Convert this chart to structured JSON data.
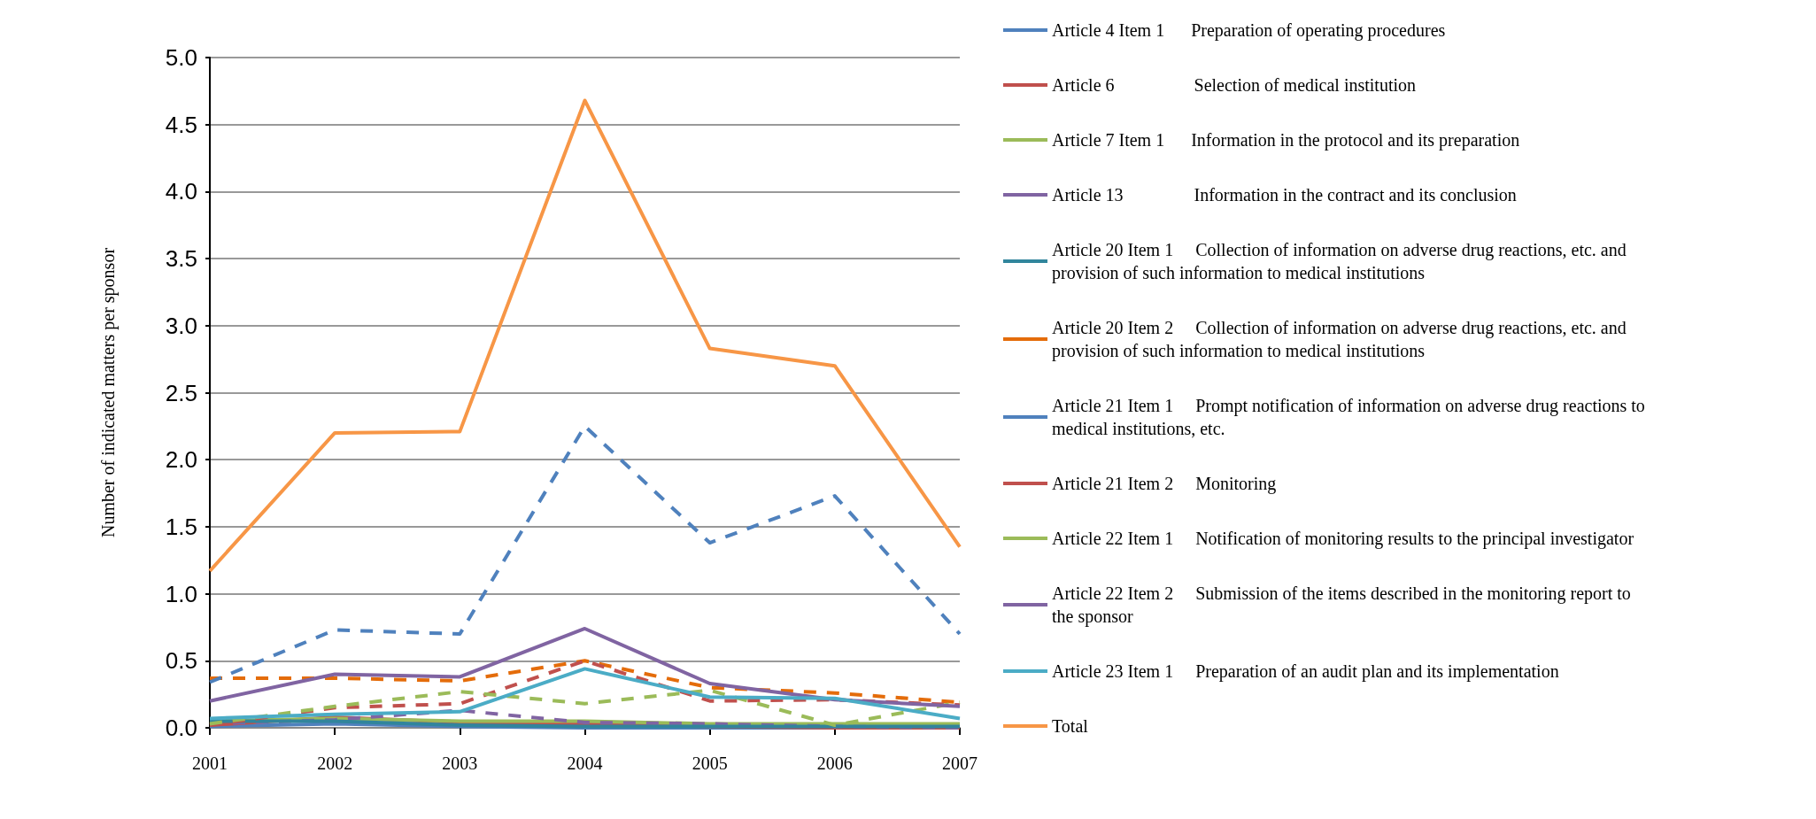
{
  "chart_data": {
    "type": "line",
    "ylabel": "Number of indicated matters per sponsor",
    "categories": [
      "2001",
      "2002",
      "2003",
      "2004",
      "2005",
      "2006",
      "2007"
    ],
    "ylim": [
      0,
      5
    ],
    "yticks": [
      {
        "value": 0,
        "label": "0.0"
      },
      {
        "value": 0.5,
        "label": "0.5"
      },
      {
        "value": 1,
        "label": "1.0"
      },
      {
        "value": 1.5,
        "label": "1.5"
      },
      {
        "value": 2,
        "label": "2.0"
      },
      {
        "value": 2.5,
        "label": "2.5"
      },
      {
        "value": 3,
        "label": "3.0"
      },
      {
        "value": 3.5,
        "label": "3.5"
      },
      {
        "value": 4,
        "label": "4.0"
      },
      {
        "value": 4.5,
        "label": "4.5"
      },
      {
        "value": 5,
        "label": "5.0"
      }
    ],
    "grid": "y",
    "legend": "right",
    "marker": "none",
    "series": [
      {
        "name": "Article 4 Item 1      Preparation of operating procedures",
        "color": "#4f81bd",
        "line_style": "solid",
        "values": [
          0.01,
          0.03,
          0.01,
          0.0,
          0.0,
          0.0,
          0.0
        ]
      },
      {
        "name": "Article 6                  Selection of medical institution",
        "color": "#c0504d",
        "line_style": "solid",
        "values": [
          0.02,
          0.08,
          0.04,
          0.03,
          0.01,
          0.0,
          0.0
        ]
      },
      {
        "name": "Article 7 Item 1      Information in the protocol and its preparation",
        "color": "#9bbb59",
        "line_style": "solid",
        "values": [
          0.05,
          0.07,
          0.05,
          0.05,
          0.03,
          0.03,
          0.03
        ]
      },
      {
        "name": "Article 13                Information in the contract and its conclusion",
        "color": "#8064a2",
        "line_style": "dashed",
        "values": [
          0.03,
          0.06,
          0.13,
          0.04,
          0.03,
          0.01,
          0.0
        ]
      },
      {
        "name": "Article 20 Item 1     Collection of information on adverse drug reactions, etc. and provision of such information to medical institutions",
        "color": "#31859c",
        "line_style": "solid",
        "values": [
          0.05,
          0.05,
          0.02,
          0.01,
          0.01,
          0.01,
          0.01
        ]
      },
      {
        "name": "Article 20 Item 2     Collection of information on adverse drug reactions, etc. and provision of such information to medical institutions",
        "color": "#e46c0a",
        "line_style": "dashed",
        "values": [
          0.37,
          0.37,
          0.35,
          0.5,
          0.3,
          0.26,
          0.19
        ]
      },
      {
        "name": "Article 21 Item 1     Prompt notification of information on adverse drug reactions to medical institutions, etc.",
        "color": "#4f81bd",
        "line_style": "dashed",
        "values": [
          0.34,
          0.73,
          0.7,
          2.25,
          1.38,
          1.73,
          0.7
        ]
      },
      {
        "name": "Article 21 Item 2     Monitoring",
        "color": "#c0504d",
        "line_style": "dashed",
        "values": [
          0.02,
          0.15,
          0.18,
          0.5,
          0.2,
          0.21,
          0.17
        ]
      },
      {
        "name": "Article 22 Item 1     Notification of monitoring results to the principal investigator",
        "color": "#9bbb59",
        "line_style": "dashed",
        "values": [
          0.03,
          0.16,
          0.27,
          0.18,
          0.28,
          0.02,
          0.19
        ]
      },
      {
        "name": "Article 22 Item 2     Submission of the items described in the monitoring report to the sponsor",
        "color": "#8064a2",
        "line_style": "solid",
        "values": [
          0.2,
          0.4,
          0.38,
          0.74,
          0.33,
          0.21,
          0.16
        ]
      },
      {
        "name": "Article 23 Item 1     Preparation of an audit plan and its implementation",
        "color": "#4bacc6",
        "line_style": "solid",
        "values": [
          0.07,
          0.1,
          0.12,
          0.44,
          0.23,
          0.22,
          0.07
        ]
      },
      {
        "name": "Total",
        "color": "#f79646",
        "line_style": "solid",
        "values": [
          1.17,
          2.2,
          2.21,
          4.68,
          2.83,
          2.7,
          1.35
        ]
      }
    ]
  }
}
